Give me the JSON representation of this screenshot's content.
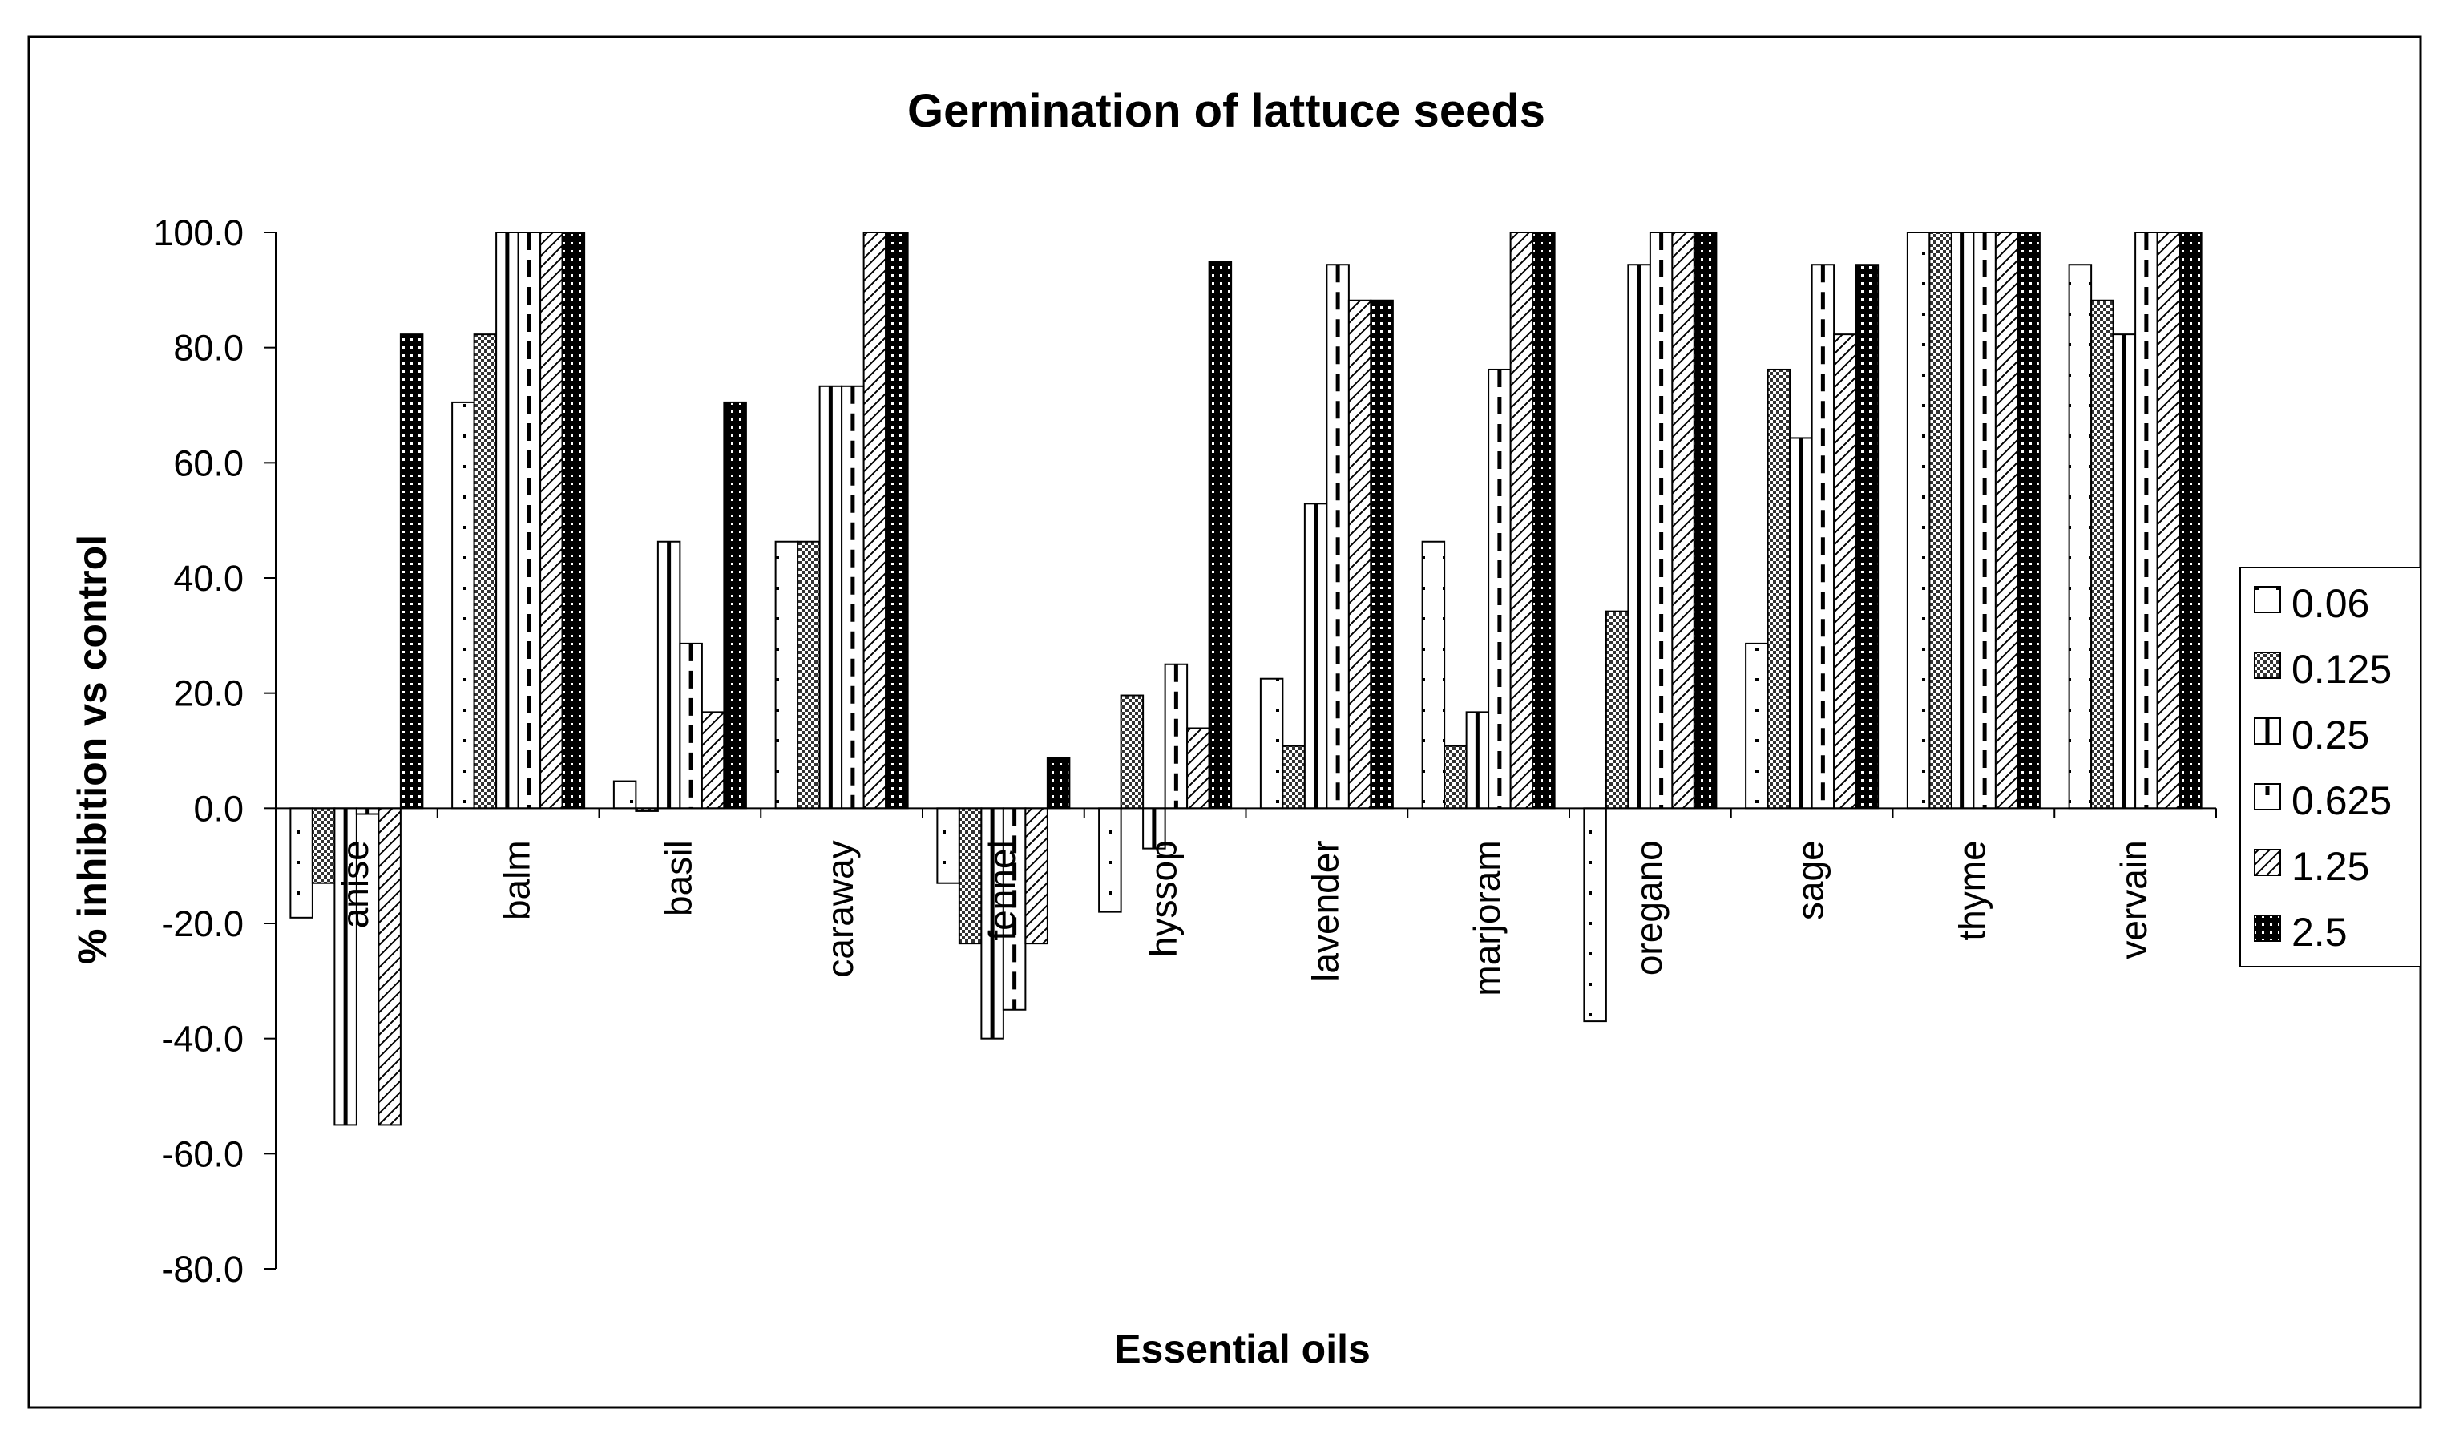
{
  "chart_data": {
    "type": "bar",
    "title": "Germination of lattuce seeds",
    "xlabel": "Essential oils",
    "ylabel": "% inhibition vs control",
    "ylim": [
      -80,
      100
    ],
    "yticks": [
      "100.0",
      "80.0",
      "60.0",
      "40.0",
      "20.0",
      "0.0",
      "-20.0",
      "-40.0",
      "-60.0",
      "-80.0"
    ],
    "categories": [
      "anise",
      "balm",
      "basil",
      "caraway",
      "fennel",
      "hyssop",
      "lavender",
      "marjoram",
      "oregano",
      "sage",
      "thyme",
      "vervain"
    ],
    "legend_position": "right",
    "series": [
      {
        "name": "0.06",
        "pattern": "dots-sparse",
        "values": [
          -19,
          70.5,
          4.7,
          46.3,
          -13,
          -18,
          22.5,
          46.3,
          -37,
          28.6,
          100,
          94.4
        ]
      },
      {
        "name": "0.125",
        "pattern": "checker",
        "values": [
          -13,
          82.3,
          -0.5,
          46.3,
          -23.5,
          19.6,
          10.8,
          10.8,
          34.2,
          76.2,
          100,
          88.2
        ]
      },
      {
        "name": "0.25",
        "pattern": "vertical-bar",
        "values": [
          -55,
          100,
          46.3,
          73.3,
          -40,
          -7,
          52.9,
          16.7,
          94.4,
          64.3,
          100,
          82.3
        ]
      },
      {
        "name": "0.625",
        "pattern": "dashed-vertical",
        "values": [
          -1,
          100,
          28.6,
          73.3,
          -35,
          25,
          94.4,
          76.2,
          100,
          94.4,
          100,
          100
        ]
      },
      {
        "name": "1.25",
        "pattern": "diagonal",
        "values": [
          -55,
          100,
          16.7,
          100,
          -23.5,
          13.9,
          88.2,
          100,
          100,
          82.3,
          100,
          100
        ]
      },
      {
        "name": "2.5",
        "pattern": "dark-dots",
        "values": [
          82.3,
          100,
          70.5,
          100,
          8.8,
          94.9,
          88.2,
          100,
          100,
          94.4,
          100,
          100
        ]
      }
    ]
  }
}
